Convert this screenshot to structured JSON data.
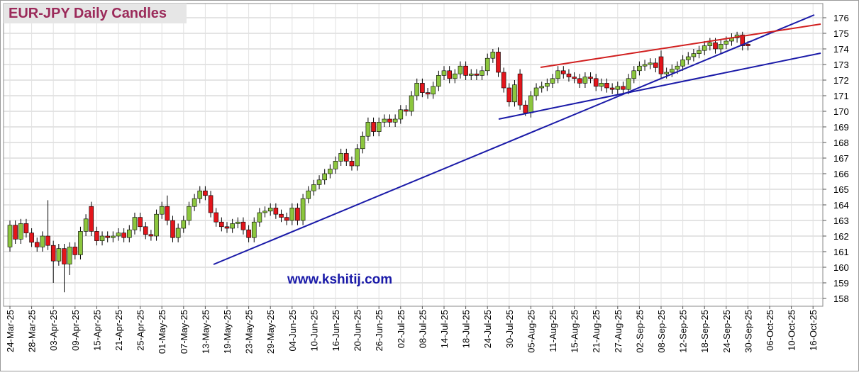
{
  "chart_data": {
    "type": "candlestick",
    "title": "EUR-JPY Daily  Candles",
    "watermark": "www.kshitij.com",
    "ylim": [
      158,
      176
    ],
    "yticks": [
      158,
      159,
      160,
      161,
      162,
      163,
      164,
      165,
      166,
      167,
      168,
      169,
      170,
      171,
      172,
      173,
      174,
      175,
      176
    ],
    "grid": true,
    "up_color": "#8cc63e",
    "down_color": "#e3151b",
    "categories": [
      "24-Mar-25",
      null,
      null,
      null,
      "28-Mar-25",
      null,
      null,
      null,
      "03-Apr-25",
      null,
      null,
      null,
      "09-Apr-25",
      null,
      null,
      null,
      "15-Apr-25",
      null,
      null,
      null,
      "21-Apr-25",
      null,
      null,
      null,
      "25-Apr-25",
      null,
      null,
      null,
      "01-May-25",
      null,
      null,
      null,
      "07-May-25",
      null,
      null,
      null,
      "13-May-25",
      null,
      null,
      null,
      "19-May-25",
      null,
      null,
      null,
      "23-May-25",
      null,
      null,
      null,
      "29-May-25",
      null,
      null,
      null,
      "04-Jun-25",
      null,
      null,
      null,
      "10-Jun-25",
      null,
      null,
      null,
      "16-Jun-25",
      null,
      null,
      null,
      "20-Jun-25",
      null,
      null,
      null,
      "26-Jun-25",
      null,
      null,
      null,
      "02-Jul-25",
      null,
      null,
      null,
      "08-Jul-25",
      null,
      null,
      null,
      "14-Jul-25",
      null,
      null,
      null,
      "18-Jul-25",
      null,
      null,
      null,
      "24-Jul-25",
      null,
      null,
      null,
      "30-Jul-25",
      null,
      null,
      null,
      "05-Aug-25",
      null,
      null,
      null,
      "11-Aug-25",
      null,
      null,
      null,
      "15-Aug-25",
      null,
      null,
      null,
      "21-Aug-25",
      null,
      null,
      null,
      "27-Aug-25",
      null,
      null,
      null,
      "02-Sep-25",
      null,
      null,
      null,
      "08-Sep-25",
      null,
      null,
      null,
      "12-Sep-25",
      null,
      null,
      null,
      "18-Sep-25",
      null,
      null,
      null,
      "24-Sep-25",
      null,
      null,
      null,
      "30-Sep-25",
      null,
      null,
      null,
      "06-Oct-25",
      null,
      null,
      null,
      "10-Oct-25",
      null,
      null,
      null,
      "16-Oct-25"
    ],
    "open": [
      161.3,
      162.7,
      161.8,
      162.8,
      162.2,
      161.6,
      161.3,
      162.0,
      161.4,
      160.4,
      161.2,
      160.2,
      161.3,
      160.8,
      162.3,
      163.9,
      162.3,
      161.7,
      162.0,
      161.9,
      162.0,
      162.2,
      161.9,
      162.4,
      163.2,
      162.6,
      162.1,
      162.0,
      163.4,
      163.9,
      163.0,
      161.9,
      162.5,
      163.0,
      163.9,
      164.4,
      164.9,
      164.6,
      163.5,
      162.9,
      162.6,
      162.5,
      162.8,
      162.9,
      162.4,
      161.9,
      162.9,
      163.5,
      163.6,
      163.8,
      163.4,
      163.2,
      163.0,
      163.8,
      163.0,
      164.4,
      164.9,
      165.3,
      165.6,
      166.0,
      166.3,
      166.8,
      167.3,
      166.8,
      166.5,
      167.6,
      168.4,
      169.3,
      168.7,
      169.3,
      169.5,
      169.3,
      169.5,
      170.1,
      170.0,
      171.0,
      171.8,
      171.2,
      171.1,
      171.6,
      172.3,
      172.6,
      172.1,
      172.4,
      172.9,
      172.3,
      172.4,
      172.3,
      172.6,
      173.4,
      173.8,
      172.5,
      171.5,
      170.6,
      172.4,
      170.4,
      169.9,
      171.0,
      171.5,
      171.6,
      171.8,
      172.1,
      172.6,
      172.4,
      172.2,
      172.1,
      171.8,
      172.2,
      172.1,
      171.6,
      171.8,
      171.5,
      171.4,
      171.6,
      171.4,
      172.1,
      172.6,
      172.9,
      173.0,
      173.1,
      173.5,
      172.4,
      172.5,
      172.7,
      172.9,
      173.3,
      173.5,
      173.7,
      173.9,
      174.2,
      174.4,
      174.0,
      174.3,
      174.5,
      174.7,
      174.9,
      174.3,
      null,
      null,
      null,
      null,
      null,
      null,
      null,
      null,
      null,
      null,
      null,
      null
    ],
    "high": [
      163.0,
      163.0,
      163.1,
      163.1,
      162.5,
      161.9,
      162.3,
      164.3,
      161.7,
      161.5,
      161.5,
      161.6,
      161.6,
      162.6,
      163.4,
      164.2,
      162.6,
      162.3,
      162.3,
      162.3,
      162.5,
      162.5,
      162.7,
      163.5,
      163.5,
      162.9,
      162.4,
      163.7,
      164.2,
      164.6,
      163.3,
      162.8,
      163.3,
      164.2,
      164.7,
      165.2,
      165.2,
      164.9,
      163.8,
      163.2,
      162.9,
      163.1,
      163.2,
      163.2,
      162.7,
      163.2,
      163.8,
      163.9,
      164.1,
      164.1,
      163.7,
      163.5,
      164.1,
      164.1,
      164.7,
      165.2,
      165.6,
      165.9,
      166.3,
      166.6,
      167.1,
      167.6,
      167.6,
      167.1,
      167.9,
      168.7,
      169.6,
      169.6,
      169.6,
      169.8,
      169.8,
      169.8,
      170.4,
      170.4,
      171.3,
      172.1,
      172.1,
      171.5,
      171.9,
      172.6,
      172.9,
      172.9,
      172.7,
      173.2,
      173.2,
      172.7,
      172.7,
      172.9,
      173.7,
      174.0,
      174.1,
      172.8,
      171.8,
      172.0,
      172.7,
      170.7,
      171.3,
      171.8,
      171.9,
      172.1,
      172.4,
      172.9,
      172.9,
      172.7,
      172.5,
      172.4,
      172.5,
      172.5,
      172.4,
      172.1,
      172.1,
      171.8,
      171.9,
      171.9,
      172.4,
      172.9,
      173.2,
      173.3,
      173.4,
      173.4,
      173.9,
      172.8,
      173.0,
      173.2,
      173.6,
      173.8,
      174.0,
      174.2,
      174.5,
      174.7,
      174.7,
      174.6,
      174.8,
      175.0,
      175.1,
      175.1,
      174.5,
      null,
      null,
      null,
      null,
      null,
      null,
      null,
      null,
      null,
      null,
      null,
      null
    ],
    "low": [
      161.0,
      161.5,
      161.5,
      161.9,
      161.3,
      161.0,
      161.0,
      161.1,
      159.0,
      160.1,
      158.4,
      159.5,
      160.5,
      160.5,
      162.0,
      162.0,
      161.4,
      161.4,
      161.6,
      161.6,
      161.7,
      161.6,
      161.6,
      162.1,
      162.3,
      161.8,
      161.7,
      161.7,
      163.1,
      162.7,
      161.6,
      161.6,
      162.2,
      162.7,
      163.6,
      164.1,
      164.3,
      163.2,
      162.6,
      162.3,
      162.2,
      162.2,
      162.5,
      162.1,
      161.6,
      161.6,
      162.6,
      163.2,
      163.3,
      163.1,
      162.9,
      162.7,
      162.7,
      162.7,
      162.7,
      164.1,
      164.6,
      165.0,
      165.3,
      165.7,
      166.0,
      166.5,
      166.5,
      166.2,
      166.2,
      167.3,
      168.1,
      168.4,
      168.4,
      169.0,
      169.0,
      169.0,
      169.2,
      169.7,
      169.7,
      170.7,
      170.9,
      170.8,
      170.8,
      171.3,
      172.0,
      171.8,
      171.8,
      172.1,
      172.0,
      172.0,
      172.0,
      172.0,
      172.3,
      173.1,
      172.2,
      171.2,
      170.3,
      170.3,
      170.1,
      169.7,
      169.6,
      170.7,
      171.2,
      171.3,
      171.5,
      171.8,
      172.1,
      171.9,
      171.8,
      171.5,
      171.5,
      171.8,
      171.3,
      171.3,
      171.2,
      171.1,
      171.1,
      171.1,
      171.1,
      171.8,
      172.3,
      172.6,
      172.7,
      172.5,
      172.1,
      172.1,
      172.2,
      172.4,
      172.6,
      173.0,
      173.2,
      173.4,
      173.6,
      173.9,
      173.7,
      173.7,
      174.0,
      174.2,
      174.4,
      173.9,
      173.9,
      null,
      null,
      null,
      null,
      null,
      null,
      null,
      null,
      null,
      null,
      null,
      null
    ],
    "close": [
      162.7,
      161.8,
      162.8,
      162.2,
      161.6,
      161.3,
      162.0,
      161.4,
      160.4,
      161.2,
      160.2,
      161.3,
      160.8,
      162.3,
      163.1,
      162.3,
      161.7,
      162.0,
      161.9,
      162.0,
      162.2,
      161.9,
      162.4,
      163.2,
      162.6,
      162.1,
      162.0,
      163.4,
      163.9,
      163.0,
      161.9,
      162.5,
      163.0,
      163.9,
      164.4,
      164.9,
      164.6,
      163.5,
      162.9,
      162.6,
      162.5,
      162.8,
      162.9,
      162.4,
      161.9,
      162.9,
      163.5,
      163.6,
      163.8,
      163.4,
      163.2,
      163.0,
      163.8,
      163.0,
      164.4,
      164.9,
      165.3,
      165.6,
      166.0,
      166.3,
      166.8,
      167.3,
      166.8,
      166.5,
      167.6,
      168.4,
      169.3,
      168.7,
      169.3,
      169.5,
      169.3,
      169.5,
      170.1,
      170.0,
      171.0,
      171.8,
      171.2,
      171.1,
      171.6,
      172.3,
      172.6,
      172.1,
      172.4,
      172.9,
      172.3,
      172.4,
      172.3,
      172.6,
      173.4,
      173.8,
      172.5,
      171.5,
      170.6,
      171.7,
      170.4,
      169.9,
      171.0,
      171.5,
      171.6,
      171.8,
      172.1,
      172.6,
      172.4,
      172.2,
      172.1,
      171.8,
      172.2,
      172.1,
      171.6,
      171.8,
      171.5,
      171.4,
      171.6,
      171.4,
      172.1,
      172.6,
      172.9,
      173.0,
      173.1,
      172.8,
      172.4,
      172.5,
      172.7,
      172.9,
      173.3,
      173.5,
      173.7,
      173.9,
      174.2,
      174.4,
      174.0,
      174.3,
      174.5,
      174.7,
      174.9,
      174.2,
      174.2,
      null,
      null,
      null,
      null,
      null,
      null,
      null,
      null,
      null,
      null,
      null,
      null
    ]
  }
}
